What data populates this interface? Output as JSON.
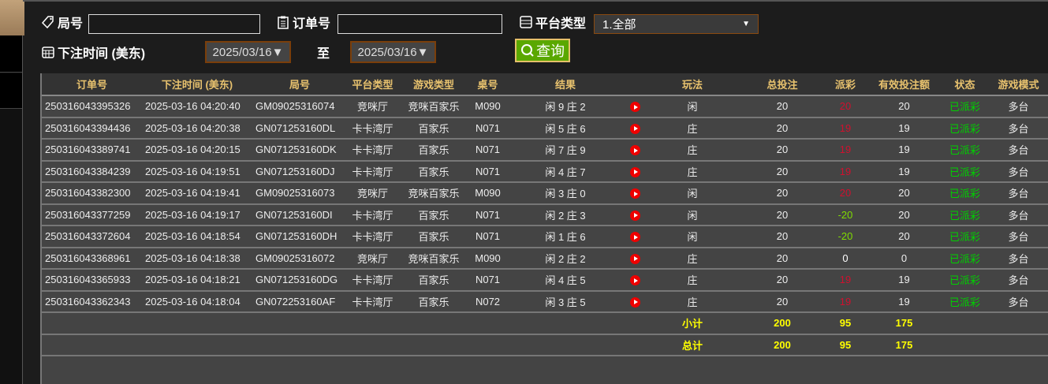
{
  "filters": {
    "round_label": "局号",
    "round_value": "",
    "order_label": "订单号",
    "order_value": "",
    "platform_label": "平台类型",
    "platform_value": "1.全部",
    "time_label": "下注时间 (美东)",
    "date_from": "2025/03/16▼",
    "to_label": "至",
    "date_to": "2025/03/16▼",
    "query_button": "查询"
  },
  "table": {
    "headers": [
      "订单号",
      "下注时间 (美东)",
      "局号",
      "平台类型",
      "游戏类型",
      "桌号",
      "结果",
      "",
      "玩法",
      "总投注",
      "派彩",
      "有效投注额",
      "状态",
      "游戏模式"
    ],
    "rows": [
      [
        "250316043395326",
        "2025-03-16 04:20:40",
        "GM09025316074",
        "竞咪厅",
        "竞咪百家乐",
        "M090",
        "闲 9 庄 2",
        "闲",
        "20",
        "20",
        "20",
        "已派彩",
        "多台"
      ],
      [
        "250316043394436",
        "2025-03-16 04:20:38",
        "GN071253160DL",
        "卡卡湾厅",
        "百家乐",
        "N071",
        "闲 5 庄 6",
        "庄",
        "20",
        "19",
        "19",
        "已派彩",
        "多台"
      ],
      [
        "250316043389741",
        "2025-03-16 04:20:15",
        "GN071253160DK",
        "卡卡湾厅",
        "百家乐",
        "N071",
        "闲 7 庄 9",
        "庄",
        "20",
        "19",
        "19",
        "已派彩",
        "多台"
      ],
      [
        "250316043384239",
        "2025-03-16 04:19:51",
        "GN071253160DJ",
        "卡卡湾厅",
        "百家乐",
        "N071",
        "闲 4 庄 7",
        "庄",
        "20",
        "19",
        "19",
        "已派彩",
        "多台"
      ],
      [
        "250316043382300",
        "2025-03-16 04:19:41",
        "GM09025316073",
        "竞咪厅",
        "竞咪百家乐",
        "M090",
        "闲 3 庄 0",
        "闲",
        "20",
        "20",
        "20",
        "已派彩",
        "多台"
      ],
      [
        "250316043377259",
        "2025-03-16 04:19:17",
        "GN071253160DI",
        "卡卡湾厅",
        "百家乐",
        "N071",
        "闲 2 庄 3",
        "闲",
        "20",
        "-20",
        "20",
        "已派彩",
        "多台"
      ],
      [
        "250316043372604",
        "2025-03-16 04:18:54",
        "GN071253160DH",
        "卡卡湾厅",
        "百家乐",
        "N071",
        "闲 1 庄 6",
        "闲",
        "20",
        "-20",
        "20",
        "已派彩",
        "多台"
      ],
      [
        "250316043368961",
        "2025-03-16 04:18:38",
        "GM09025316072",
        "竞咪厅",
        "竞咪百家乐",
        "M090",
        "闲 2 庄 2",
        "庄",
        "20",
        "0",
        "0",
        "已派彩",
        "多台"
      ],
      [
        "250316043365933",
        "2025-03-16 04:18:21",
        "GN071253160DG",
        "卡卡湾厅",
        "百家乐",
        "N071",
        "闲 4 庄 5",
        "庄",
        "20",
        "19",
        "19",
        "已派彩",
        "多台"
      ],
      [
        "250316043362343",
        "2025-03-16 04:18:04",
        "GN072253160AF",
        "卡卡湾厅",
        "百家乐",
        "N072",
        "闲 3 庄 5",
        "庄",
        "20",
        "19",
        "19",
        "已派彩",
        "多台"
      ]
    ],
    "subtotal": {
      "label": "小计",
      "total_bet": "200",
      "payout": "95",
      "valid_bet": "175"
    },
    "total": {
      "label": "总计",
      "total_bet": "200",
      "payout": "95",
      "valid_bet": "175"
    }
  },
  "colors": {
    "header_text": "#e8c26e",
    "payout_positive": "#d0102e",
    "payout_negative": "#7fdc00",
    "status": "#00d000",
    "totals": "#ffff00",
    "query_button": "#5aa800"
  },
  "icons": {
    "round": "tag-icon",
    "order": "clipboard-icon",
    "platform": "list-icon",
    "time": "calendar-icon",
    "query": "search-icon",
    "replay": "play-icon"
  }
}
